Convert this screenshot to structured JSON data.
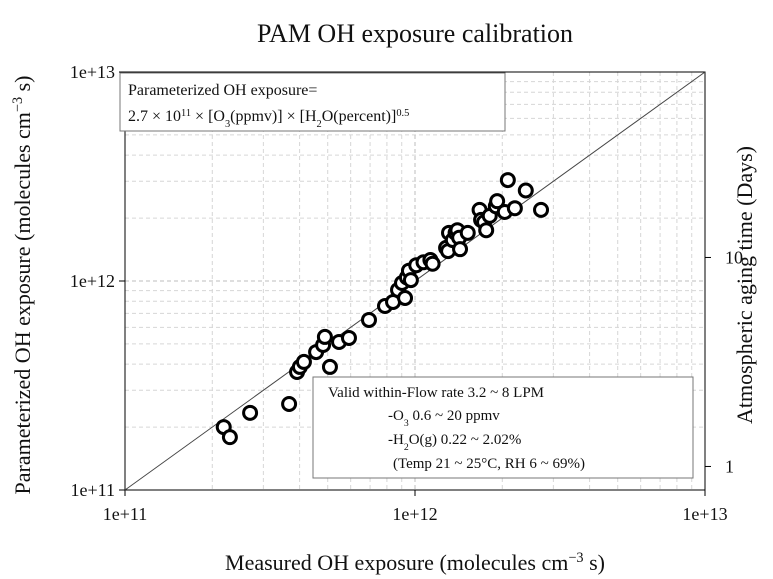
{
  "chart_data": {
    "type": "scatter",
    "title": "PAM OH exposure calibration",
    "xlabel": [
      {
        "text": "Measured OH exposure (molecules cm"
      },
      {
        "text": "−3",
        "sup": true
      },
      {
        "text": " s)"
      }
    ],
    "ylabel": [
      {
        "text": "Parameterized OH exposure (molecules cm"
      },
      {
        "text": "−3",
        "sup": true
      },
      {
        "text": " s)"
      }
    ],
    "y2label": "Atmospheric aging time (Days)",
    "xscale": "log",
    "yscale": "log",
    "y2scale": "log",
    "xlim": [
      100000000000.0,
      10000000000000.0
    ],
    "ylim": [
      100000000000.0,
      10000000000000.0
    ],
    "y2lim": [
      0.7716,
      77.16
    ],
    "xticks": [
      {
        "value": 100000000000.0,
        "label": "1e+11"
      },
      {
        "value": 1000000000000.0,
        "label": "1e+12"
      },
      {
        "value": 10000000000000.0,
        "label": "1e+13"
      }
    ],
    "yticks": [
      {
        "value": 100000000000.0,
        "label": "1e+11"
      },
      {
        "value": 1000000000000.0,
        "label": "1e+12"
      },
      {
        "value": 10000000000000.0,
        "label": "1e+13"
      }
    ],
    "y2ticks": [
      1,
      10
    ],
    "grid": true,
    "color": "#000000",
    "x": [
      219000000000.0,
      230000000000.0,
      270000000000.0,
      368000000000.0,
      392000000000.0,
      401000000000.0,
      414000000000.0,
      456000000000.0,
      482000000000.0,
      489000000000.0,
      509000000000.0,
      547000000000.0,
      592000000000.0,
      694000000000.0,
      788000000000.0,
      840000000000.0,
      874000000000.0,
      902000000000.0,
      924000000000.0,
      938000000000.0,
      953000000000.0,
      968000000000.0,
      1010000000000.0,
      1070000000000.0,
      1130000000000.0,
      1150000000000.0,
      1280000000000.0,
      1300000000000.0,
      1310000000000.0,
      1350000000000.0,
      1380000000000.0,
      1400000000000.0,
      1420000000000.0,
      1430000000000.0,
      1520000000000.0,
      1670000000000.0,
      1690000000000.0,
      1730000000000.0,
      1760000000000.0,
      1810000000000.0,
      1900000000000.0,
      1920000000000.0,
      2040000000000.0,
      2090000000000.0,
      2210000000000.0,
      2410000000000.0,
      2720000000000.0
    ],
    "values": [
      200000000000.0,
      179000000000.0,
      234000000000.0,
      258000000000.0,
      367000000000.0,
      388000000000.0,
      410000000000.0,
      457000000000.0,
      494000000000.0,
      540000000000.0,
      388000000000.0,
      511000000000.0,
      534000000000.0,
      651000000000.0,
      759000000000.0,
      794000000000.0,
      906000000000.0,
      978000000000.0,
      829000000000.0,
      1040000000000.0,
      1120000000000.0,
      1010000000000.0,
      1190000000000.0,
      1230000000000.0,
      1260000000000.0,
      1210000000000.0,
      1440000000000.0,
      1390000000000.0,
      1700000000000.0,
      1570000000000.0,
      1700000000000.0,
      1750000000000.0,
      1610000000000.0,
      1420000000000.0,
      1700000000000.0,
      2190000000000.0,
      1960000000000.0,
      1910000000000.0,
      1750000000000.0,
      2050000000000.0,
      2280000000000.0,
      2410000000000.0,
      2140000000000.0,
      3040000000000.0,
      2230000000000.0,
      2710000000000.0,
      2190000000000.0
    ],
    "annotations": [
      {
        "lines": [
          [
            {
              "text": "Parameterized OH exposure="
            }
          ],
          [
            {
              "text": "2.7 × 10"
            },
            {
              "text": "11",
              "sup": true
            },
            {
              "text": " × [O"
            },
            {
              "text": "3",
              "sub": true
            },
            {
              "text": "(ppmv)] × [H"
            },
            {
              "text": "2",
              "sub": true
            },
            {
              "text": "O(percent)]"
            },
            {
              "text": "0.5",
              "sup": true
            }
          ]
        ]
      },
      {
        "lines": [
          [
            {
              "text": "Valid within-Flow rate 3.2 ~ 8 LPM"
            }
          ],
          [
            {
              "text": "-O"
            },
            {
              "text": "3",
              "sub": true
            },
            {
              "text": " 0.6 ~ 20 ppmv"
            }
          ],
          [
            {
              "text": "-H"
            },
            {
              "text": "2",
              "sub": true
            },
            {
              "text": "O(g) 0.22 ~ 2.02%"
            }
          ],
          [
            {
              "text": "(Temp 21 ~ 25°C, RH 6 ~ 69%)"
            }
          ]
        ]
      }
    ]
  }
}
